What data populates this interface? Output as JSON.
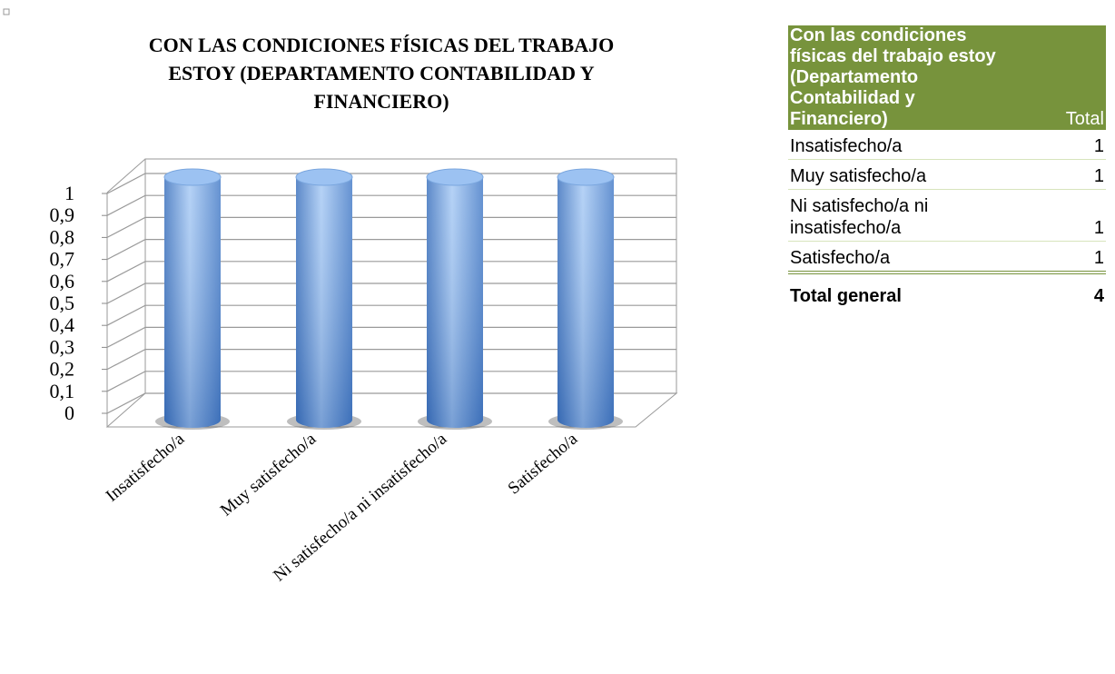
{
  "chart_data": {
    "type": "bar3d",
    "title": "CON LAS CONDICIONES  FÍSICAS DEL TRABAJO ESTOY (DEPARTAMENTO CONTABILIDAD Y FINANCIERO)",
    "categories": [
      "Insatisfecho/a",
      "Muy satisfecho/a",
      "Ni satisfecho/a ni insatisfecho/a",
      "Satisfecho/a"
    ],
    "values": [
      1,
      1,
      1,
      1
    ],
    "color": "#5b8fd0",
    "ylim": [
      0,
      1
    ],
    "yticks": [
      0,
      {
        "value": 0.1,
        "label": "0,1"
      },
      {
        "value": 0.2,
        "label": "0,2"
      },
      {
        "value": 0.3,
        "label": "0,3"
      },
      {
        "value": 0.4,
        "label": "0,4"
      },
      {
        "value": 0.5,
        "label": "0,5"
      },
      {
        "value": 0.6,
        "label": "0,6"
      },
      {
        "value": 0.7,
        "label": "0,7"
      },
      {
        "value": 0.8,
        "label": "0,8"
      },
      {
        "value": 0.9,
        "label": "0,9"
      },
      1
    ],
    "grid": true
  },
  "table": {
    "header": [
      "Con las condiciones físicas del trabajo estoy (Departamento Contabilidad y Financiero)",
      "Total"
    ],
    "rows": [
      [
        "Insatisfecho/a",
        1
      ],
      [
        "Muy satisfecho/a",
        1
      ],
      [
        "Ni satisfecho/a ni insatisfecho/a",
        1
      ],
      [
        "Satisfecho/a",
        1
      ]
    ],
    "total": [
      "Total general",
      4
    ]
  }
}
